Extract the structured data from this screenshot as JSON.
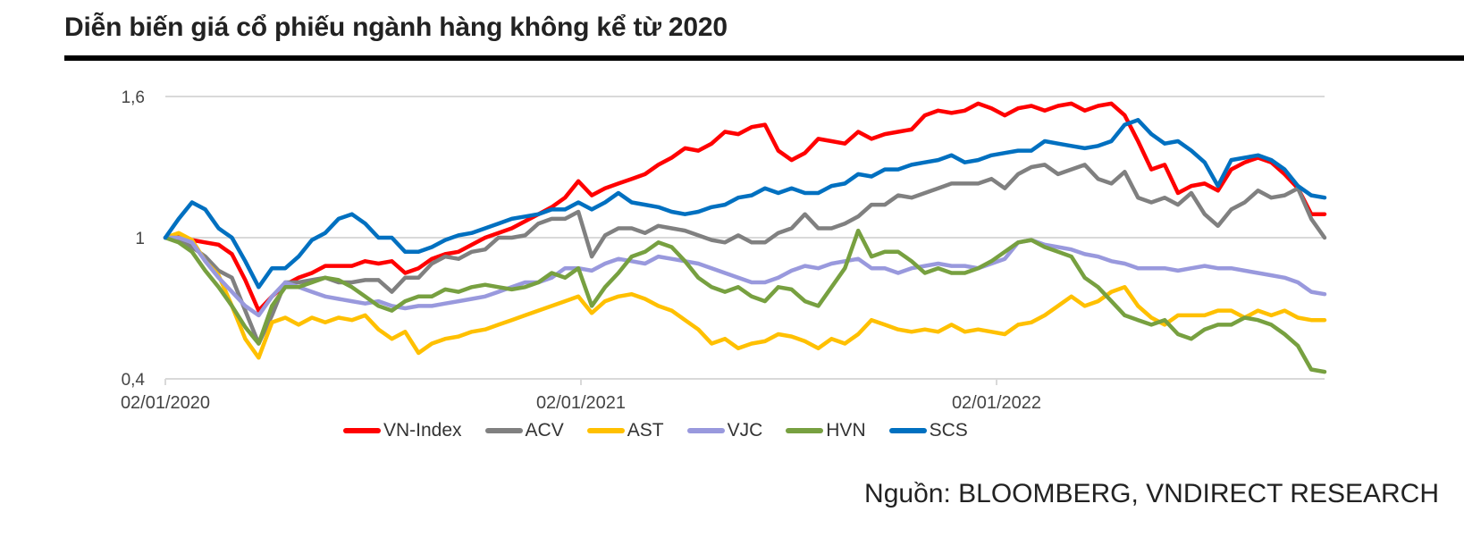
{
  "title": "Diễn biến giá cổ phiếu ngành hàng không kể từ 2020",
  "source": "Nguồn: BLOOMBERG, VNDIRECT RESEARCH",
  "chart_data": {
    "type": "line",
    "title": "Diễn biến giá cổ phiếu ngành hàng không kể từ 2020",
    "xlabel": "",
    "ylabel": "",
    "ylim": [
      0.4,
      1.6
    ],
    "yticks": [
      "0,4",
      "1",
      "1,6"
    ],
    "ytick_values": [
      0.4,
      1.0,
      1.6
    ],
    "xticks": [
      "02/01/2020",
      "02/01/2021",
      "02/01/2022"
    ],
    "x_range_years": [
      0,
      2.82
    ],
    "grid": true,
    "legend_position": "bottom",
    "x_step_years": 0.0323,
    "series": [
      {
        "name": "VN-Index",
        "color": "#FF0000",
        "values": [
          1.0,
          1.01,
          0.99,
          0.98,
          0.97,
          0.93,
          0.82,
          0.69,
          0.75,
          0.8,
          0.83,
          0.85,
          0.88,
          0.88,
          0.88,
          0.9,
          0.89,
          0.9,
          0.85,
          0.87,
          0.91,
          0.93,
          0.94,
          0.97,
          1.0,
          1.02,
          1.04,
          1.07,
          1.1,
          1.13,
          1.17,
          1.24,
          1.18,
          1.21,
          1.23,
          1.25,
          1.27,
          1.31,
          1.34,
          1.38,
          1.37,
          1.4,
          1.45,
          1.44,
          1.47,
          1.48,
          1.37,
          1.33,
          1.36,
          1.42,
          1.41,
          1.4,
          1.45,
          1.42,
          1.44,
          1.45,
          1.46,
          1.52,
          1.54,
          1.53,
          1.54,
          1.57,
          1.55,
          1.52,
          1.55,
          1.56,
          1.54,
          1.56,
          1.57,
          1.54,
          1.56,
          1.57,
          1.52,
          1.41,
          1.29,
          1.31,
          1.19,
          1.22,
          1.23,
          1.2,
          1.29,
          1.32,
          1.34,
          1.32,
          1.27,
          1.21,
          1.1,
          1.1
        ]
      },
      {
        "name": "ACV",
        "color": "#808080",
        "values": [
          1.0,
          0.99,
          0.96,
          0.92,
          0.86,
          0.83,
          0.69,
          0.55,
          0.67,
          0.81,
          0.81,
          0.82,
          0.83,
          0.81,
          0.81,
          0.82,
          0.82,
          0.77,
          0.83,
          0.83,
          0.89,
          0.92,
          0.91,
          0.94,
          0.95,
          1.0,
          1.0,
          1.01,
          1.06,
          1.08,
          1.08,
          1.11,
          0.92,
          1.01,
          1.04,
          1.04,
          1.02,
          1.05,
          1.04,
          1.03,
          1.01,
          0.99,
          0.98,
          1.01,
          0.98,
          0.98,
          1.02,
          1.04,
          1.1,
          1.04,
          1.04,
          1.06,
          1.09,
          1.14,
          1.14,
          1.18,
          1.17,
          1.19,
          1.21,
          1.23,
          1.23,
          1.23,
          1.25,
          1.21,
          1.27,
          1.3,
          1.31,
          1.27,
          1.29,
          1.31,
          1.25,
          1.23,
          1.28,
          1.17,
          1.15,
          1.17,
          1.14,
          1.19,
          1.1,
          1.05,
          1.12,
          1.15,
          1.2,
          1.17,
          1.18,
          1.21,
          1.08,
          1.0
        ]
      },
      {
        "name": "AST",
        "color": "#FFC000",
        "values": [
          1.0,
          1.02,
          0.99,
          0.9,
          0.84,
          0.71,
          0.57,
          0.49,
          0.64,
          0.66,
          0.63,
          0.66,
          0.64,
          0.66,
          0.65,
          0.67,
          0.61,
          0.57,
          0.6,
          0.51,
          0.55,
          0.57,
          0.58,
          0.6,
          0.61,
          0.63,
          0.65,
          0.67,
          0.69,
          0.71,
          0.73,
          0.75,
          0.68,
          0.73,
          0.75,
          0.76,
          0.74,
          0.71,
          0.69,
          0.65,
          0.61,
          0.55,
          0.57,
          0.53,
          0.55,
          0.56,
          0.59,
          0.58,
          0.56,
          0.53,
          0.57,
          0.55,
          0.59,
          0.65,
          0.63,
          0.61,
          0.6,
          0.61,
          0.6,
          0.63,
          0.6,
          0.61,
          0.6,
          0.59,
          0.63,
          0.64,
          0.67,
          0.71,
          0.75,
          0.71,
          0.73,
          0.77,
          0.79,
          0.71,
          0.66,
          0.63,
          0.67,
          0.67,
          0.67,
          0.69,
          0.69,
          0.66,
          0.69,
          0.67,
          0.69,
          0.66,
          0.65,
          0.65
        ]
      },
      {
        "name": "VJC",
        "color": "#9999DD",
        "values": [
          1.0,
          1.0,
          0.98,
          0.9,
          0.83,
          0.77,
          0.71,
          0.67,
          0.75,
          0.81,
          0.79,
          0.77,
          0.75,
          0.74,
          0.73,
          0.72,
          0.73,
          0.71,
          0.7,
          0.71,
          0.71,
          0.72,
          0.73,
          0.74,
          0.75,
          0.77,
          0.79,
          0.81,
          0.81,
          0.83,
          0.87,
          0.87,
          0.86,
          0.89,
          0.91,
          0.9,
          0.89,
          0.92,
          0.91,
          0.9,
          0.89,
          0.87,
          0.85,
          0.83,
          0.81,
          0.81,
          0.83,
          0.86,
          0.88,
          0.87,
          0.89,
          0.9,
          0.91,
          0.87,
          0.87,
          0.85,
          0.87,
          0.88,
          0.89,
          0.88,
          0.88,
          0.87,
          0.89,
          0.91,
          0.98,
          0.99,
          0.97,
          0.96,
          0.95,
          0.93,
          0.92,
          0.9,
          0.89,
          0.87,
          0.87,
          0.87,
          0.86,
          0.87,
          0.88,
          0.87,
          0.87,
          0.86,
          0.85,
          0.84,
          0.83,
          0.81,
          0.77,
          0.76
        ]
      },
      {
        "name": "HVN",
        "color": "#77A040",
        "values": [
          1.0,
          0.98,
          0.94,
          0.86,
          0.79,
          0.71,
          0.62,
          0.55,
          0.71,
          0.79,
          0.79,
          0.81,
          0.83,
          0.82,
          0.79,
          0.75,
          0.71,
          0.69,
          0.73,
          0.75,
          0.75,
          0.78,
          0.77,
          0.79,
          0.8,
          0.79,
          0.78,
          0.79,
          0.81,
          0.85,
          0.83,
          0.87,
          0.71,
          0.79,
          0.85,
          0.92,
          0.94,
          0.98,
          0.96,
          0.9,
          0.83,
          0.79,
          0.77,
          0.79,
          0.75,
          0.73,
          0.79,
          0.78,
          0.73,
          0.71,
          0.79,
          0.87,
          1.03,
          0.92,
          0.94,
          0.94,
          0.9,
          0.85,
          0.87,
          0.85,
          0.85,
          0.87,
          0.9,
          0.94,
          0.98,
          0.99,
          0.96,
          0.94,
          0.92,
          0.83,
          0.79,
          0.73,
          0.67,
          0.65,
          0.63,
          0.65,
          0.59,
          0.57,
          0.61,
          0.63,
          0.63,
          0.66,
          0.65,
          0.63,
          0.59,
          0.54,
          0.44,
          0.43
        ]
      },
      {
        "name": "SCS",
        "color": "#0070C0",
        "values": [
          1.0,
          1.08,
          1.15,
          1.12,
          1.04,
          1.0,
          0.9,
          0.79,
          0.87,
          0.87,
          0.92,
          0.99,
          1.02,
          1.08,
          1.1,
          1.06,
          1.0,
          1.0,
          0.94,
          0.94,
          0.96,
          0.99,
          1.01,
          1.02,
          1.04,
          1.06,
          1.08,
          1.09,
          1.1,
          1.12,
          1.12,
          1.15,
          1.12,
          1.15,
          1.19,
          1.15,
          1.14,
          1.13,
          1.11,
          1.1,
          1.11,
          1.13,
          1.14,
          1.17,
          1.18,
          1.21,
          1.19,
          1.21,
          1.19,
          1.19,
          1.22,
          1.23,
          1.27,
          1.26,
          1.29,
          1.29,
          1.31,
          1.32,
          1.33,
          1.35,
          1.32,
          1.33,
          1.35,
          1.36,
          1.37,
          1.37,
          1.41,
          1.4,
          1.39,
          1.38,
          1.39,
          1.41,
          1.48,
          1.5,
          1.44,
          1.4,
          1.41,
          1.37,
          1.32,
          1.22,
          1.33,
          1.34,
          1.35,
          1.33,
          1.29,
          1.22,
          1.18,
          1.17
        ]
      }
    ]
  }
}
